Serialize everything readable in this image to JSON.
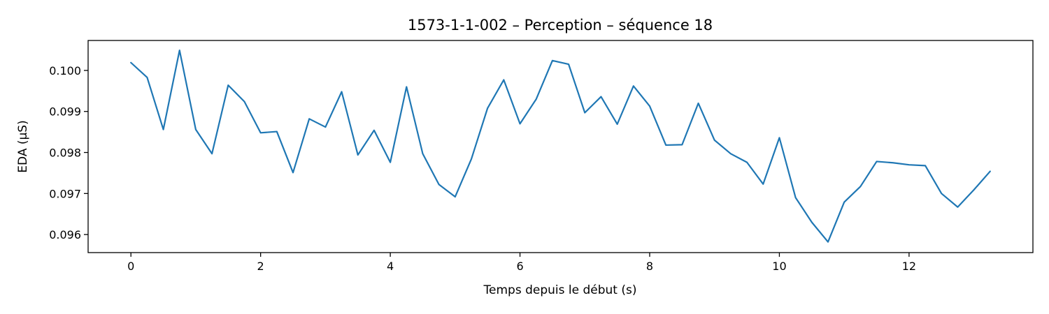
{
  "chart_data": {
    "type": "line",
    "title": "1573-1-1-002 – Perception – séquence 18",
    "xlabel": "Temps depuis le début (s)",
    "ylabel": "EDA (µS)",
    "xlim": [
      -0.66,
      13.91
    ],
    "ylim": [
      0.09556,
      0.10073
    ],
    "xticks": [
      0,
      2,
      4,
      6,
      8,
      10,
      12
    ],
    "xtick_labels": [
      "0",
      "2",
      "4",
      "6",
      "8",
      "10",
      "12"
    ],
    "yticks": [
      0.096,
      0.097,
      0.098,
      0.099,
      0.1
    ],
    "ytick_labels": [
      "0.096",
      "0.097",
      "0.098",
      "0.099",
      "0.100"
    ],
    "grid": false,
    "series": [
      {
        "color": "#1f77b4",
        "x": [
          0,
          0.25,
          0.5,
          0.75,
          1.0,
          1.25,
          1.5,
          1.75,
          2.0,
          2.25,
          2.5,
          2.75,
          3.0,
          3.25,
          3.5,
          3.75,
          4.0,
          4.25,
          4.5,
          4.75,
          5.0,
          5.25,
          5.5,
          5.75,
          6.0,
          6.25,
          6.5,
          6.75,
          7.0,
          7.25,
          7.5,
          7.75,
          8.0,
          8.25,
          8.5,
          8.75,
          9.0,
          9.25,
          9.5,
          9.75,
          10.0,
          10.25,
          10.5,
          10.75,
          11.0,
          11.25,
          11.5,
          11.75,
          12.0,
          12.25,
          12.5,
          12.75,
          13.0,
          13.25
        ],
        "y": [
          0.10019,
          0.09983,
          0.09856,
          0.10049,
          0.09856,
          0.09797,
          0.09964,
          0.09924,
          0.09848,
          0.09851,
          0.09751,
          0.09882,
          0.09862,
          0.09948,
          0.09794,
          0.09854,
          0.09776,
          0.0996,
          0.09797,
          0.09722,
          0.09692,
          0.09784,
          0.09908,
          0.09977,
          0.0987,
          0.0993,
          0.10024,
          0.10015,
          0.09897,
          0.09936,
          0.09869,
          0.09962,
          0.09913,
          0.09818,
          0.09819,
          0.0992,
          0.0983,
          0.09797,
          0.09776,
          0.09723,
          0.09836,
          0.0969,
          0.0963,
          0.09582,
          0.09679,
          0.09717,
          0.09778,
          0.09775,
          0.0977,
          0.09768,
          0.097,
          0.09667,
          0.09709,
          0.09754
        ]
      }
    ]
  }
}
